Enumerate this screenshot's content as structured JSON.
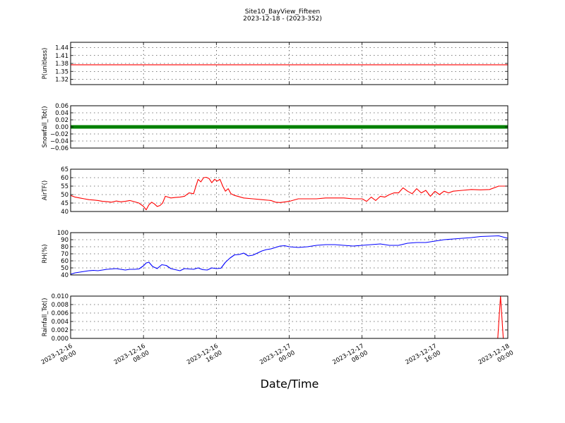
{
  "title": "Site10_BayView_Fifteen",
  "subtitle": "2023-12-18 - (2023-352)",
  "xlabel": "Date/Time",
  "x_tick_labels": [
    [
      "2023-12-16",
      "00:00"
    ],
    [
      "2023-12-16",
      "08:00"
    ],
    [
      "2023-12-16",
      "16:00"
    ],
    [
      "2023-12-17",
      "00:00"
    ],
    [
      "2023-12-17",
      "08:00"
    ],
    [
      "2023-12-17",
      "16:00"
    ],
    [
      "2023-12-18",
      "00:00"
    ]
  ],
  "chart_data": [
    {
      "type": "line",
      "ylabel": "P(unitless)",
      "ylim": [
        1.3,
        1.46
      ],
      "yticks": [
        1.32,
        1.35,
        1.38,
        1.41,
        1.44
      ],
      "ytick_labels": [
        "1.32",
        "1.35",
        "1.38",
        "1.41",
        "1.44"
      ],
      "grid": true,
      "series": [
        {
          "color": "#ff0000",
          "x": [
            0,
            48
          ],
          "y": [
            1.375,
            1.375
          ]
        }
      ]
    },
    {
      "type": "line",
      "ylabel": "Snowfall_Tot()",
      "ylim": [
        -0.06,
        0.06
      ],
      "yticks": [
        -0.06,
        -0.04,
        -0.02,
        0.0,
        0.02,
        0.04,
        0.06
      ],
      "ytick_labels": [
        "−0.06",
        "−0.04",
        "−0.02",
        "0.00",
        "0.02",
        "0.04",
        "0.06"
      ],
      "grid": true,
      "series": [
        {
          "color": "#008000",
          "markers": true,
          "x": [
            0,
            48
          ],
          "y": [
            0.0,
            0.0
          ]
        }
      ]
    },
    {
      "type": "line",
      "ylabel": "AirTF()",
      "ylim": [
        40,
        65
      ],
      "yticks": [
        40,
        45,
        50,
        55,
        60,
        65
      ],
      "ytick_labels": [
        "40",
        "45",
        "50",
        "55",
        "60",
        "65"
      ],
      "grid": true,
      "series": [
        {
          "color": "#ff0000",
          "x": [
            0,
            0.5,
            1,
            1.5,
            2,
            2.5,
            3,
            3.5,
            4,
            4.5,
            5,
            5.5,
            6,
            6.5,
            7,
            7.5,
            8,
            8.3,
            8.6,
            8.9,
            9.2,
            9.5,
            9.8,
            10.1,
            10.4,
            10.7,
            11,
            11.5,
            12,
            12.5,
            13,
            13.5,
            14,
            14.3,
            14.6,
            14.9,
            15.2,
            15.5,
            15.8,
            16.1,
            16.4,
            16.7,
            17,
            17.3,
            17.6,
            18,
            19,
            20,
            21,
            22,
            22.5,
            23,
            24,
            25,
            26,
            27,
            28,
            29,
            30,
            31,
            32,
            32.5,
            33,
            33.5,
            34,
            34.5,
            35,
            35.5,
            36,
            36.5,
            37,
            37.5,
            38,
            38.5,
            39,
            39.5,
            40,
            40.5,
            41,
            41.5,
            42,
            43,
            44,
            45,
            46,
            47,
            48
          ],
          "y": [
            49.5,
            48.5,
            48,
            47.5,
            47,
            46.8,
            46.5,
            46,
            45.8,
            45.5,
            46.2,
            45.7,
            46,
            46.5,
            45.8,
            45,
            43,
            41,
            44,
            45.5,
            44.5,
            43,
            43.5,
            45,
            49,
            48.5,
            48,
            48.3,
            48.5,
            49,
            51,
            50.5,
            59,
            57.5,
            60,
            60.2,
            59.5,
            57,
            59,
            58,
            59,
            55,
            52,
            53.5,
            50.5,
            49.5,
            48,
            47.5,
            47,
            46.5,
            45.5,
            45.3,
            46,
            47.5,
            47.5,
            47.5,
            48,
            48,
            48,
            47.5,
            47.5,
            46,
            48.5,
            46.5,
            49,
            48.5,
            50,
            51,
            51,
            54,
            52,
            50.5,
            53.5,
            51,
            52.5,
            49,
            52,
            50,
            52,
            51,
            52,
            52.5,
            53,
            52.8,
            53,
            55,
            55
          ]
        }
      ]
    },
    {
      "type": "line",
      "ylabel": "RH(%)",
      "ylim": [
        40,
        100
      ],
      "yticks": [
        40,
        50,
        60,
        70,
        80,
        90,
        100
      ],
      "ytick_labels": [
        "40",
        "50",
        "60",
        "70",
        "80",
        "90",
        "100"
      ],
      "grid": true,
      "series": [
        {
          "color": "#0000ff",
          "x": [
            0,
            0.5,
            1,
            2,
            2.5,
            3,
            3.5,
            4,
            4.5,
            5,
            5.5,
            6,
            6.5,
            7,
            7.5,
            8,
            8.3,
            8.6,
            9,
            9.5,
            10,
            10.5,
            11,
            11.5,
            12,
            12.5,
            13,
            13.5,
            14,
            14.5,
            15,
            15.5,
            16,
            16.5,
            17,
            17.5,
            18,
            18.5,
            19,
            19.5,
            20,
            21,
            21.5,
            22,
            22.5,
            23,
            23.5,
            24,
            25,
            26,
            27,
            28,
            29,
            30,
            31,
            32,
            33,
            34,
            35,
            36,
            37,
            38,
            39,
            40,
            41,
            42,
            43,
            44,
            45,
            46,
            47,
            48
          ],
          "y": [
            41,
            43,
            44,
            46,
            46.5,
            46,
            47,
            48,
            48.5,
            49,
            48,
            47,
            48,
            48,
            48.5,
            53,
            57,
            58,
            52,
            49,
            54.5,
            53.5,
            49,
            47.5,
            46,
            49,
            48.5,
            48,
            50,
            47.5,
            47,
            50,
            49,
            49.5,
            58,
            64,
            68.5,
            69,
            71,
            67,
            68,
            74,
            76,
            77,
            79,
            81,
            81.5,
            80,
            79,
            80,
            82,
            83,
            83,
            82,
            81,
            82,
            83,
            84,
            82,
            82,
            85,
            86,
            86,
            88,
            90,
            91,
            92,
            93,
            94.5,
            95,
            95.5,
            92
          ]
        }
      ]
    },
    {
      "type": "line",
      "ylabel": "Rainfall_Tot()",
      "ylim": [
        0.0,
        0.01
      ],
      "yticks": [
        0.0,
        0.002,
        0.004,
        0.006,
        0.008,
        0.01
      ],
      "ytick_labels": [
        "0.000",
        "0.002",
        "0.004",
        "0.006",
        "0.008",
        "0.010"
      ],
      "grid": true,
      "series": [
        {
          "color": "#ff0000",
          "x": [
            0,
            46.9,
            47.2,
            47.5,
            48
          ],
          "y": [
            0,
            0,
            0.01,
            0,
            0
          ]
        }
      ]
    }
  ]
}
